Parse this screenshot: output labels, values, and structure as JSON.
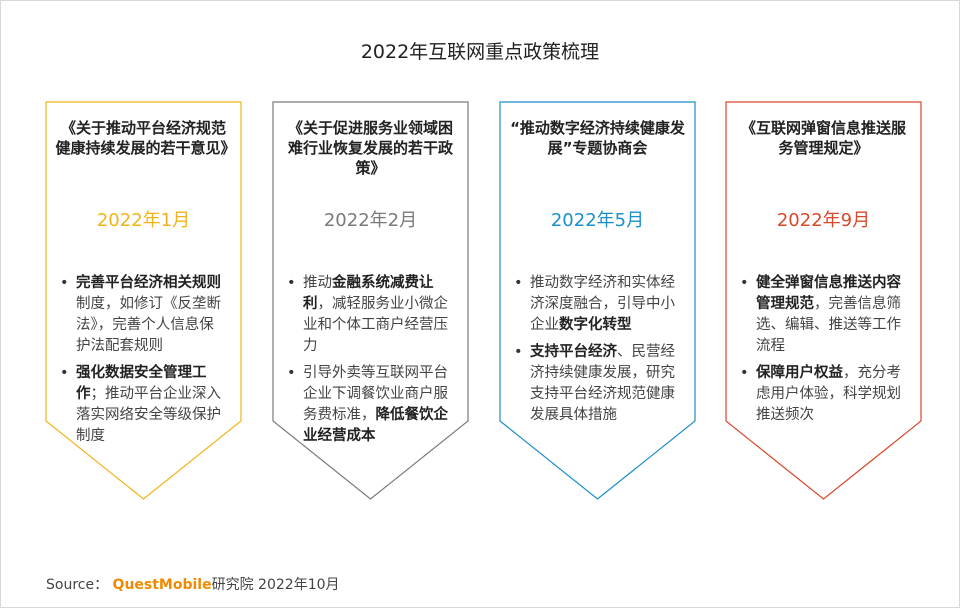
{
  "title": "2022年互联网重点政策梳理",
  "cards": [
    {
      "heading": "《关于推动平台经济规范健康持续发展的若干意见》",
      "date": "2022年1月",
      "color": "#f2b31a",
      "bullets": [
        [
          {
            "text": "完善平台经济相关规则",
            "bold": true
          },
          {
            "text": "制度，如修订《反垄断法》，完善个人信息保护法配套规则",
            "bold": false
          }
        ],
        [
          {
            "text": "强化数据安全管理工作",
            "bold": true
          },
          {
            "text": "；推动平台企业深入落实网络安全等级保护制度",
            "bold": false
          }
        ]
      ]
    },
    {
      "heading": "《关于促进服务业领域困难行业恢复发展的若干政策》",
      "date": "2022年2月",
      "color": "#7a7a7a",
      "bullets": [
        [
          {
            "text": "推动",
            "bold": false
          },
          {
            "text": "金融系统减费让利",
            "bold": true
          },
          {
            "text": "，减轻服务业小微企业和个体工商户经营压力",
            "bold": false
          }
        ],
        [
          {
            "text": "引导外卖等互联网平台企业下调餐饮业商户服务费标准，",
            "bold": false
          },
          {
            "text": "降低餐饮企业经营成本",
            "bold": true
          }
        ]
      ]
    },
    {
      "heading": "“推动数字经济持续健康发展”专题协商会",
      "date": "2022年5月",
      "color": "#1a8fc9",
      "bullets": [
        [
          {
            "text": "推动数字经济和实体经济深度融合，引导中小企业",
            "bold": false
          },
          {
            "text": "数字化转型",
            "bold": true
          }
        ],
        [
          {
            "text": "支持平台经济",
            "bold": true
          },
          {
            "text": "、民营经济持续健康发展，研究支持平台经济规范健康发展具体措施",
            "bold": false
          }
        ]
      ]
    },
    {
      "heading": "《互联网弹窗信息推送服务管理规定》",
      "date": "2022年9月",
      "color": "#d9482b",
      "bullets": [
        [
          {
            "text": "健全弹窗信息推送内容管理规范",
            "bold": true
          },
          {
            "text": "，完善信息筛选、编辑、推送等工作流程",
            "bold": false
          }
        ],
        [
          {
            "text": "保障用户权益",
            "bold": true
          },
          {
            "text": "，充分考虑用户体验，科学规划推送频次",
            "bold": false
          }
        ]
      ]
    }
  ],
  "source": {
    "label": "Source：",
    "brand": "QuestMobile",
    "rest": "研究院 2022年10月"
  }
}
